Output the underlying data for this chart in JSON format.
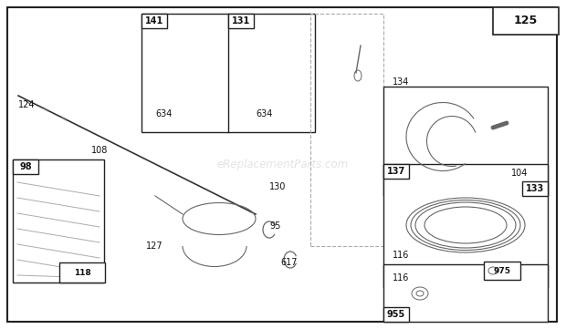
{
  "bg_color": "#ffffff",
  "box_color": "#222222",
  "text_color": "#111111",
  "gray": "#666666",
  "light_gray": "#aaaaaa",
  "watermark": "eReplacementParts.com",
  "watermark_color": "#cccccc",
  "figw": 6.2,
  "figh": 3.61
}
